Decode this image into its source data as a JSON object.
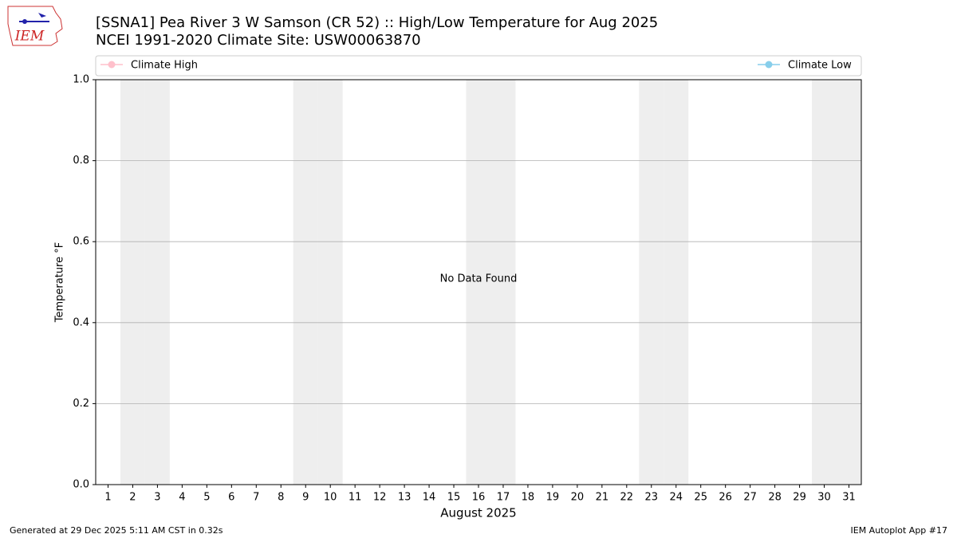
{
  "chart_data": {
    "type": "line",
    "title": "[SSNA1] Pea River 3 W Samson (CR 52) :: High/Low Temperature for Aug 2025",
    "subtitle": "NCEI 1991-2020 Climate Site: USW00063870",
    "logo_text": "IEM",
    "x_label": "August 2025",
    "y_label": "Temperature °F",
    "annotation": "No Data Found",
    "x": [
      1,
      2,
      3,
      4,
      5,
      6,
      7,
      8,
      9,
      10,
      11,
      12,
      13,
      14,
      15,
      16,
      17,
      18,
      19,
      20,
      21,
      22,
      23,
      24,
      25,
      26,
      27,
      28,
      29,
      30,
      31
    ],
    "series": [
      {
        "name": "Climate High",
        "color": "#ffc0cb",
        "values": [
          null,
          null,
          null,
          null,
          null,
          null,
          null,
          null,
          null,
          null,
          null,
          null,
          null,
          null,
          null,
          null,
          null,
          null,
          null,
          null,
          null,
          null,
          null,
          null,
          null,
          null,
          null,
          null,
          null,
          null,
          null
        ]
      },
      {
        "name": "Climate Low",
        "color": "#87ceeb",
        "values": [
          null,
          null,
          null,
          null,
          null,
          null,
          null,
          null,
          null,
          null,
          null,
          null,
          null,
          null,
          null,
          null,
          null,
          null,
          null,
          null,
          null,
          null,
          null,
          null,
          null,
          null,
          null,
          null,
          null,
          null,
          null
        ]
      }
    ],
    "shaded_days": [
      2,
      3,
      9,
      10,
      16,
      17,
      23,
      24,
      30,
      31
    ],
    "xlim": [
      0.5,
      31.5
    ],
    "xticks": [
      1,
      2,
      3,
      4,
      5,
      6,
      7,
      8,
      9,
      10,
      11,
      12,
      13,
      14,
      15,
      16,
      17,
      18,
      19,
      20,
      21,
      22,
      23,
      24,
      25,
      26,
      27,
      28,
      29,
      30,
      31
    ],
    "ylim": [
      0,
      1
    ],
    "yticks": [
      {
        "value": 0,
        "label": "0.0"
      },
      0.2,
      0.4,
      0.6,
      0.8,
      {
        "value": 1,
        "label": "1.0"
      }
    ],
    "grid": true,
    "footer_left": "Generated at 29 Dec 2025 5:11 AM CST in 0.32s",
    "footer_right": "IEM Autoplot App #17"
  }
}
